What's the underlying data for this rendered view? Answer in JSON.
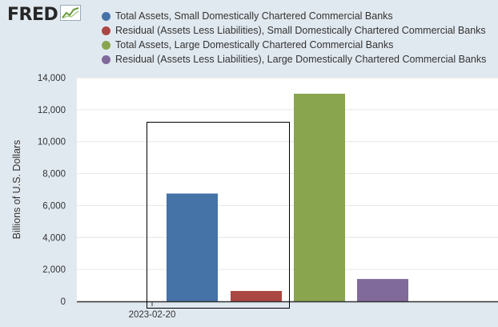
{
  "logo": {
    "text": "FRED",
    "icon": "fred-chart-icon"
  },
  "colors": {
    "background": "#e1e9f0",
    "plot_bg": "#ffffff",
    "gridline": "#e6e6e6",
    "axis": "#333333",
    "selection": "#000000"
  },
  "chart_data": {
    "type": "bar",
    "title": "",
    "xlabel": "",
    "ylabel": "Billions of U.S. Dollars",
    "categories": [
      "2023-02-20"
    ],
    "ylim": [
      0,
      14000
    ],
    "yticks": [
      0,
      2000,
      4000,
      6000,
      8000,
      10000,
      12000,
      14000
    ],
    "ytick_labels": [
      "0",
      "2,000",
      "4,000",
      "6,000",
      "8,000",
      "10,000",
      "12,000",
      "14,000"
    ],
    "grid": true,
    "legend_position": "top",
    "series": [
      {
        "name": "Total Assets, Small Domestically Chartered Commercial Banks",
        "color": "#4572a7",
        "values": [
          6750
        ]
      },
      {
        "name": "Residual (Assets Less Liabilities), Small Domestically Chartered Commercial Banks",
        "color": "#aa4643",
        "values": [
          650
        ]
      },
      {
        "name": "Total Assets, Large Domestically Chartered Commercial Banks",
        "color": "#89a54e",
        "values": [
          13000
        ]
      },
      {
        "name": "Residual (Assets Less Liabilities), Large Domestically Chartered Commercial Banks",
        "color": "#80699b",
        "values": [
          1400
        ]
      }
    ]
  }
}
